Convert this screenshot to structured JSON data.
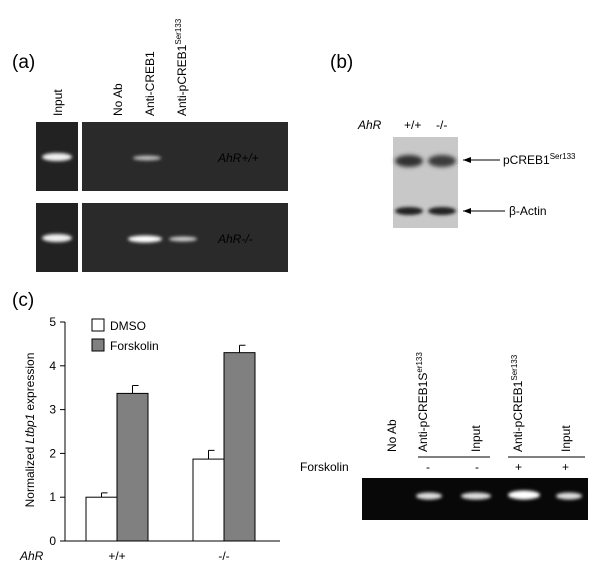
{
  "panel_a": {
    "label": "(a)",
    "lanes": [
      {
        "text": "Input"
      },
      {
        "text": "No Ab"
      },
      {
        "text": "Anti-CREB1"
      },
      {
        "text": "Anti-pCREB1",
        "sup": "Ser133"
      }
    ],
    "rows": [
      "AhR+/+",
      "AhR-/-"
    ]
  },
  "panel_b": {
    "label": "(b)",
    "gene": "AhR",
    "genotypes": [
      "+/+",
      "-/-"
    ],
    "bands": [
      {
        "text": "pCREB1",
        "sup": "Ser133"
      },
      {
        "text": "β-Actin"
      }
    ]
  },
  "panel_c": {
    "label": "(c)",
    "lanes": [
      {
        "text": "No Ab"
      },
      {
        "text": "Anti-pCREB1S",
        "sup": "er133"
      },
      {
        "text": "Input"
      },
      {
        "text": "Anti-pCREB1",
        "sup": "Ser133"
      },
      {
        "text": "Input"
      }
    ],
    "treatment": "Forskolin",
    "signs": [
      "-",
      "-",
      "+",
      "+"
    ]
  },
  "chart_data": {
    "type": "bar",
    "y_label": {
      "pre": "Normalized",
      "italic": "Ltbp1",
      "post": "expression"
    },
    "x_label": "AhR",
    "categories": [
      "+/+",
      "-/-"
    ],
    "series": [
      {
        "name": "DMSO",
        "color": "#ffffff",
        "values": [
          1.0,
          1.87
        ],
        "errors": [
          0.1,
          0.2
        ]
      },
      {
        "name": "Forskolin",
        "color": "#808080",
        "values": [
          3.37,
          4.3
        ],
        "errors": [
          0.18,
          0.17
        ]
      }
    ],
    "ylim": [
      0,
      5
    ],
    "yticks": [
      0,
      1,
      2,
      3,
      4,
      5
    ]
  }
}
